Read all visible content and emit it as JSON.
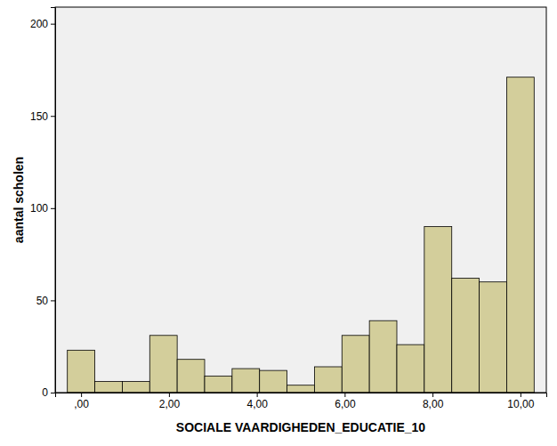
{
  "chart_data": {
    "type": "histogram",
    "xlabel": "SOCIALE VAARDIGHEDEN_EDUCATIE_10",
    "ylabel": "aantal scholen",
    "bins": [
      -0.3125,
      0.3125,
      0.9375,
      1.5625,
      2.1875,
      2.8125,
      3.4375,
      4.0625,
      4.6875,
      5.3125,
      5.9375,
      6.5625,
      7.1875,
      7.8125,
      8.4375,
      9.0625,
      9.6875,
      10.3125
    ],
    "values": [
      23,
      6,
      6,
      31,
      18,
      9,
      13,
      12,
      4,
      14,
      31,
      39,
      26,
      90,
      62,
      60,
      171
    ],
    "color": "#d3ce9b",
    "xlim": [
      -0.59,
      10.59
    ],
    "ylim": [
      0,
      209
    ],
    "xticks": [
      {
        "value": 0,
        "label": ",00"
      },
      {
        "value": 2,
        "label": "2,00"
      },
      {
        "value": 4,
        "label": "4,00"
      },
      {
        "value": 6,
        "label": "6,00"
      },
      {
        "value": 8,
        "label": "8,00"
      },
      {
        "value": 10,
        "label": "10,00"
      }
    ],
    "yticks": [
      0,
      50,
      100,
      150,
      200
    ],
    "grid": false
  }
}
